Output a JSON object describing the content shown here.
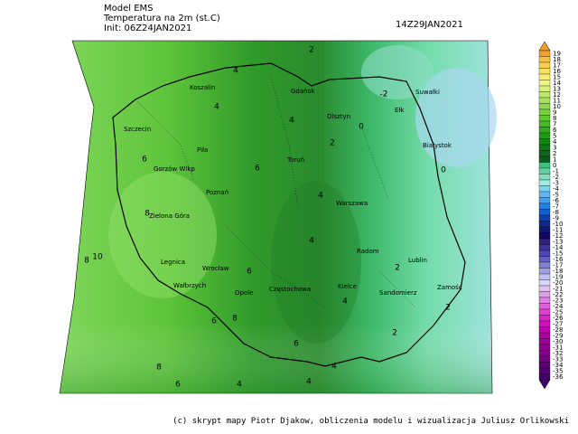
{
  "header": {
    "model": "Model EMS",
    "field": "Temperatura na 2m (st.C)",
    "init": "Init: 06Z24JAN2021",
    "valid": "14Z29JAN2021"
  },
  "cities": [
    "Koszalin",
    "Gdańsk",
    "Olsztyn",
    "Suwałki",
    "Ełk",
    "Białystok",
    "Szczecin",
    "Piła",
    "Toruń",
    "Gorzów Wlkp",
    "Poznań",
    "Warszawa",
    "Zielona Góra",
    "Radom",
    "Lublin",
    "Legnica",
    "Wrocław",
    "Wałbrzych",
    "Opole",
    "Kielce",
    "Częstochowa",
    "Sandomierz",
    "Zamość"
  ],
  "contour_labels": [
    4,
    2,
    -2,
    4,
    4,
    0,
    2,
    0,
    6,
    6,
    4,
    8,
    4,
    10,
    2,
    6,
    8,
    4,
    2,
    6,
    8,
    2,
    6,
    8,
    4,
    4,
    6,
    4
  ],
  "colorbar": {
    "ticks": [
      19,
      18,
      17,
      16,
      15,
      14,
      13,
      12,
      11,
      10,
      9,
      8,
      7,
      6,
      5,
      4,
      3,
      2,
      1,
      0,
      -1,
      -2,
      -3,
      -4,
      -5,
      -6,
      -7,
      -8,
      -9,
      -10,
      -11,
      -12,
      -13,
      -14,
      -15,
      -16,
      -17,
      -18,
      -19,
      -20,
      -21,
      -22,
      -23,
      -24,
      -25,
      -26,
      -27,
      -28,
      -29,
      -30,
      -31,
      -32,
      -33,
      -34,
      -35,
      -36
    ],
    "colors": [
      "#f0a030",
      "#f8c040",
      "#f8d050",
      "#f8e060",
      "#f8f070",
      "#f0f880",
      "#d8f080",
      "#c0e870",
      "#a8e060",
      "#90d850",
      "#78d040",
      "#60c830",
      "#48b828",
      "#30a820",
      "#209818",
      "#108810",
      "#0a7a18",
      "#106820",
      "#0c5a1c",
      "#40c080",
      "#60d0a0",
      "#80e0c0",
      "#a0e8e0",
      "#80d0f0",
      "#60b8f0",
      "#40a0f0",
      "#2080e0",
      "#1060d0",
      "#1040b0",
      "#102890",
      "#101870",
      "#100860",
      "#302080",
      "#4030a0",
      "#5048b0",
      "#6060c0",
      "#8080d0",
      "#a0a0e0",
      "#c0c0f0",
      "#d8d8f8",
      "#e0c0f0",
      "#e0a0e8",
      "#e080e0",
      "#e060d8",
      "#e040d0",
      "#e020c8",
      "#d010c0",
      "#c000b0",
      "#b000a0",
      "#a00098",
      "#900090",
      "#800088",
      "#700080",
      "#600078",
      "#500070",
      "#400068"
    ]
  },
  "footer": "(c) skrypt mapy Piotr Djakow, obliczenia modelu i wizualizacja Juliusz Orlikowski"
}
